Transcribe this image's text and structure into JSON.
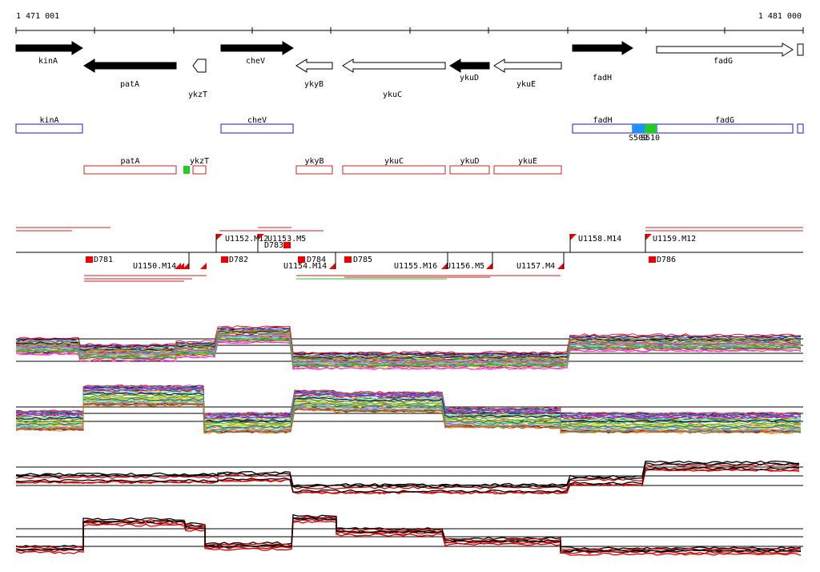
{
  "coords": {
    "start": "1 471 001",
    "end": "1 481 000"
  },
  "colors": {
    "gene_fill": "#000000",
    "feature_blue": "#1a1acc",
    "feature_red": "#cc2222",
    "highlight_blue": "#1e90ff",
    "highlight_green": "#22cc22",
    "marker_red": "#ee0000",
    "trace_black": "#000000",
    "trace_red": "#dd0000"
  },
  "genes": [
    {
      "name": "kinA",
      "strand": "+",
      "filled": true
    },
    {
      "name": "patA",
      "strand": "-",
      "filled": true
    },
    {
      "name": "ykzT",
      "strand": "-",
      "filled": false
    },
    {
      "name": "cheV",
      "strand": "+",
      "filled": true
    },
    {
      "name": "ykyB",
      "strand": "-",
      "filled": false
    },
    {
      "name": "ykuC",
      "strand": "-",
      "filled": false
    },
    {
      "name": "ykuD",
      "strand": "-",
      "filled": true
    },
    {
      "name": "ykuE",
      "strand": "-",
      "filled": false
    },
    {
      "name": "fadH",
      "strand": "+",
      "filled": true
    },
    {
      "name": "fadG",
      "strand": "+",
      "filled": false
    }
  ],
  "blue_features": [
    "kinA",
    "cheV",
    "fadH",
    "fadG"
  ],
  "red_features": [
    "patA",
    "ykzT",
    "ykyB",
    "ykuC",
    "ykuD",
    "ykuE"
  ],
  "highlights": [
    "S509",
    "S510"
  ],
  "upper_units": [
    "U1152.M12",
    "U1153.M5",
    "U1158.M14",
    "U1159.M12"
  ],
  "lower_units": [
    "U1150.M14",
    "U1154.M14",
    "U1155.M16",
    "U1156.M5",
    "U1157.M4"
  ],
  "d_markers": [
    "D781",
    "D782",
    "D783",
    "D784",
    "D785",
    "D786"
  ]
}
